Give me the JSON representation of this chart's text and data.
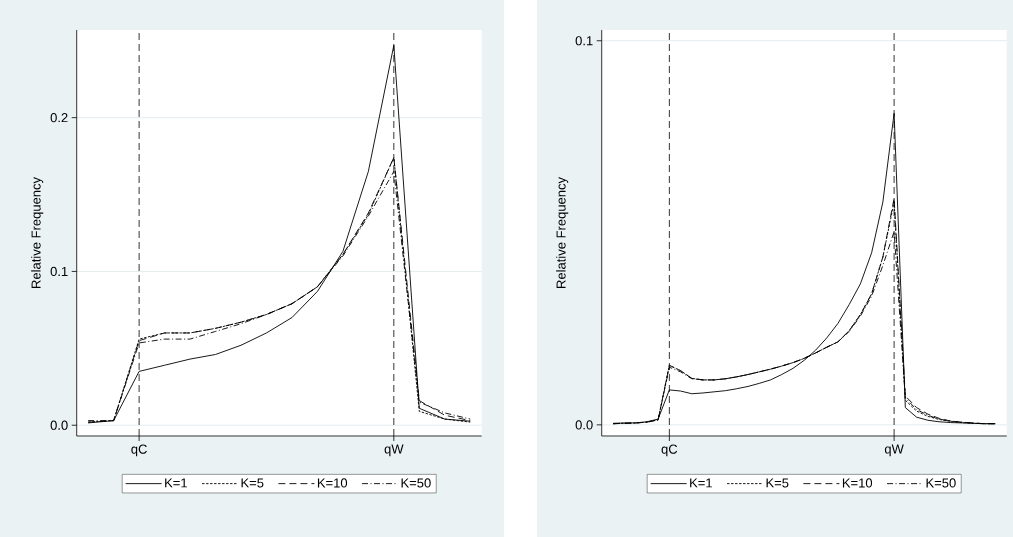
{
  "chart_data": [
    {
      "type": "line",
      "ylabel": "Relative Frequency",
      "categories": [
        null,
        null,
        "qC",
        null,
        null,
        null,
        null,
        null,
        null,
        null,
        null,
        null,
        "qW",
        null,
        null,
        null
      ],
      "ylim": [
        -0.007,
        0.257
      ],
      "yticks": [
        {
          "value": 0,
          "label": "0.0"
        },
        {
          "value": 0.1,
          "label": "0.1"
        },
        {
          "value": 0.2,
          "label": "0.2"
        }
      ],
      "grid": "y",
      "legend": "bottom",
      "ref_lines": [
        {
          "axis": "x",
          "value": "qC",
          "color": "#000000",
          "line_style": "dashed"
        },
        {
          "axis": "x",
          "value": "qW",
          "color": "#000000",
          "line_style": "dashed"
        }
      ],
      "series": [
        {
          "name": "K=1",
          "color": "#000000",
          "line_style": "solid",
          "values": [
            0.0015,
            0.003,
            0.035,
            0.039,
            0.043,
            0.046,
            0.052,
            0.06,
            0.07,
            0.087,
            0.113,
            0.165,
            0.247,
            0.011,
            0.004,
            0.0026
          ]
        },
        {
          "name": "K=5",
          "color": "#000000",
          "line_style": "dotted",
          "values": [
            0.002,
            0.003,
            0.056,
            0.06,
            0.06,
            0.063,
            0.067,
            0.072,
            0.079,
            0.09,
            0.111,
            0.137,
            0.174,
            0.009,
            0.004,
            0.002
          ]
        },
        {
          "name": "K=10",
          "color": "#000000",
          "line_style": "dashed",
          "values": [
            0.002,
            0.003,
            0.055,
            0.06,
            0.06,
            0.063,
            0.067,
            0.072,
            0.079,
            0.09,
            0.111,
            0.138,
            0.174,
            0.016,
            0.0065,
            0.003
          ]
        },
        {
          "name": "K=50",
          "color": "#000000",
          "line_style": "dashdot",
          "values": [
            0.003,
            0.003,
            0.0535,
            0.056,
            0.056,
            0.061,
            0.066,
            0.072,
            0.079,
            0.09,
            0.11,
            0.136,
            0.165,
            0.015,
            0.008,
            0.004
          ]
        }
      ]
    },
    {
      "type": "line",
      "ylabel": "Relative Frequency",
      "categories": [
        null,
        null,
        null,
        null,
        null,
        "qC",
        null,
        null,
        null,
        null,
        null,
        null,
        null,
        null,
        null,
        null,
        null,
        null,
        null,
        null,
        null,
        null,
        null,
        null,
        null,
        "qW",
        null,
        null,
        null,
        null,
        null,
        null,
        null,
        null,
        null
      ],
      "ylim": [
        -0.0029,
        0.1028
      ],
      "yticks": [
        {
          "value": 0,
          "label": "0.0"
        },
        {
          "value": 0.1,
          "label": "0.1"
        }
      ],
      "grid": "y",
      "legend": "bottom",
      "ref_lines": [
        {
          "axis": "x",
          "value": "qC",
          "color": "#000000",
          "line_style": "dashed"
        },
        {
          "axis": "x",
          "value": "qW",
          "color": "#000000",
          "line_style": "dashed"
        }
      ],
      "series": [
        {
          "name": "K=1",
          "color": "#000000",
          "line_style": "solid",
          "values": [
            0.0004,
            0.0005,
            0.0005,
            0.0008,
            0.0015,
            0.0091,
            0.0088,
            0.0081,
            0.0083,
            0.0086,
            0.0089,
            0.0094,
            0.01,
            0.0108,
            0.0117,
            0.0131,
            0.0147,
            0.0168,
            0.0194,
            0.0226,
            0.0264,
            0.0313,
            0.0367,
            0.0448,
            0.058,
            0.0811,
            0.0045,
            0.002,
            0.0012,
            0.0008,
            0.0006,
            0.0005,
            0.0004,
            0.0003,
            0.0003
          ]
        },
        {
          "name": "K=5",
          "color": "#000000",
          "line_style": "dotted",
          "values": [
            0.0003,
            0.0004,
            0.0005,
            0.0007,
            0.0013,
            0.0155,
            0.0141,
            0.0121,
            0.0117,
            0.0117,
            0.012,
            0.0125,
            0.0131,
            0.0138,
            0.0145,
            0.0153,
            0.0162,
            0.0173,
            0.0187,
            0.0202,
            0.0216,
            0.0245,
            0.0287,
            0.0341,
            0.0437,
            0.058,
            0.0064,
            0.0036,
            0.0022,
            0.0014,
            0.0009,
            0.0006,
            0.0004,
            0.0003,
            0.0003
          ]
        },
        {
          "name": "K=10",
          "color": "#000000",
          "line_style": "dashed",
          "values": [
            0.0003,
            0.0004,
            0.0005,
            0.0007,
            0.0013,
            0.0155,
            0.0141,
            0.0121,
            0.0117,
            0.0117,
            0.012,
            0.0125,
            0.0131,
            0.0138,
            0.0145,
            0.0153,
            0.0162,
            0.0173,
            0.0187,
            0.0202,
            0.0216,
            0.0245,
            0.0287,
            0.0341,
            0.0437,
            0.059,
            0.0075,
            0.0045,
            0.0028,
            0.0017,
            0.001,
            0.0007,
            0.0005,
            0.0003,
            0.0003
          ]
        },
        {
          "name": "K=50",
          "color": "#000000",
          "line_style": "dashdot",
          "values": [
            0.0003,
            0.0004,
            0.0005,
            0.0007,
            0.0013,
            0.015,
            0.0138,
            0.012,
            0.0117,
            0.0117,
            0.012,
            0.0125,
            0.0131,
            0.0138,
            0.0145,
            0.0153,
            0.0162,
            0.0173,
            0.0187,
            0.0202,
            0.0216,
            0.0243,
            0.0283,
            0.0335,
            0.0415,
            0.0503,
            0.007,
            0.004,
            0.0025,
            0.0015,
            0.001,
            0.0007,
            0.0005,
            0.0003,
            0.0003
          ]
        }
      ]
    }
  ]
}
